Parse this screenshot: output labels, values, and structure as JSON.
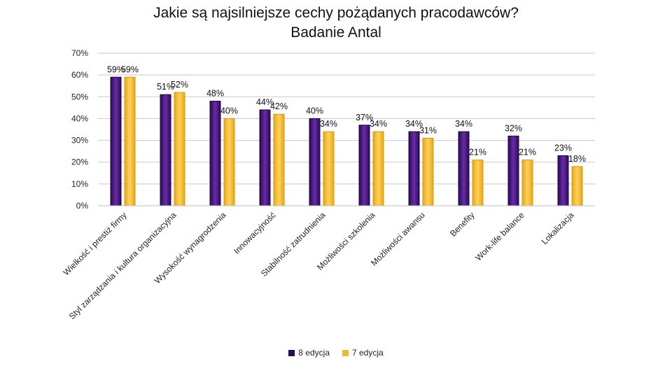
{
  "chart_data": {
    "type": "bar",
    "title": "Jakie są najsilniejsze cechy pożądanych pracodawców?",
    "subtitle": "Badanie Antal",
    "categories": [
      "Wielkość i prestiż firmy",
      "Styl zarządzania i kultura organizacyjna",
      "Wysokość wynagrodzenia",
      "Innowacyjność",
      "Stabilność zatrudnienia",
      "Możliwości szkolenia",
      "Możliwości awansu",
      "Benefity",
      "Work-life balance",
      "Lokalizacja"
    ],
    "series": [
      {
        "name": "8 edycja",
        "color": "#4b1a7e",
        "values": [
          59,
          51,
          48,
          44,
          40,
          37,
          34,
          34,
          32,
          23
        ]
      },
      {
        "name": "7 edycja",
        "color": "#f3b72f",
        "values": [
          59,
          52,
          40,
          42,
          34,
          34,
          31,
          21,
          21,
          18
        ]
      }
    ],
    "yticks": [
      "0%",
      "10%",
      "20%",
      "30%",
      "40%",
      "50%",
      "60%",
      "70%"
    ],
    "ylim": [
      0,
      70
    ],
    "grid": true,
    "legend_position": "bottom",
    "value_suffix": "%"
  }
}
